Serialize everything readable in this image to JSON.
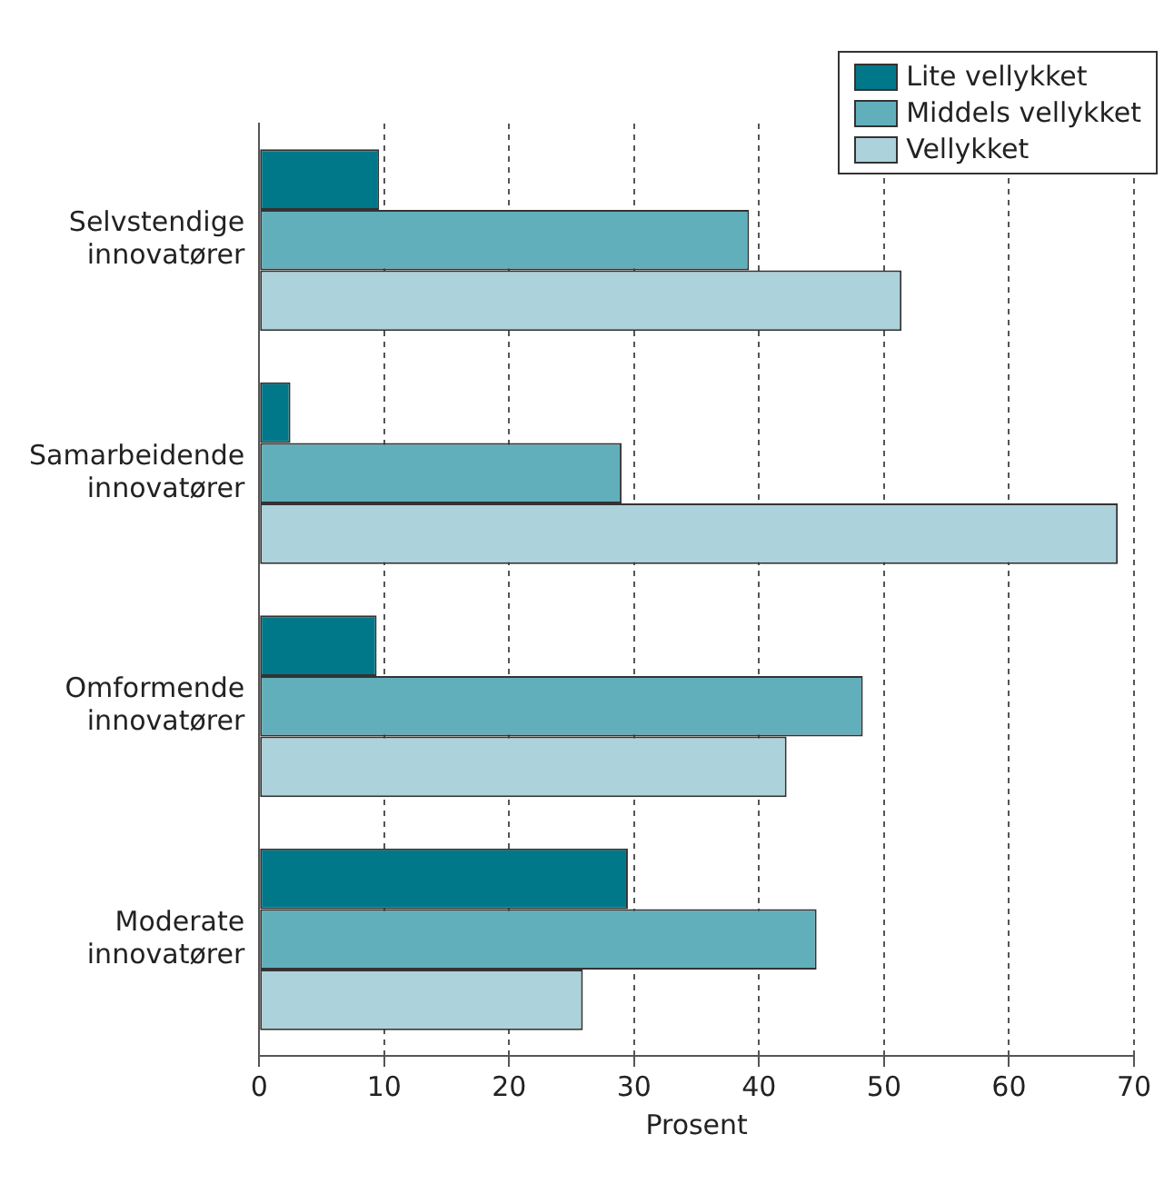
{
  "chart_data": {
    "type": "bar",
    "orientation": "horizontal",
    "xlabel": "Prosent",
    "categories": [
      "Selvstendige innovatører",
      "Samarbeidende innovatører",
      "Omformende innovatører",
      "Moderate innovatører"
    ],
    "series": [
      {
        "name": "Lite vellykket",
        "color": "#00788a",
        "values": [
          9.6,
          2.5,
          9.4,
          29.5
        ]
      },
      {
        "name": "Middels vellykket",
        "color": "#62afbc",
        "values": [
          39.2,
          29.0,
          48.3,
          44.6
        ]
      },
      {
        "name": "Vellykket",
        "color": "#acd2db",
        "values": [
          51.4,
          68.7,
          42.2,
          25.9
        ]
      }
    ],
    "xlim": [
      0,
      70
    ],
    "xticks": [
      0,
      10,
      20,
      30,
      40,
      50,
      60,
      70
    ],
    "grid": "x",
    "legend": "top right"
  }
}
